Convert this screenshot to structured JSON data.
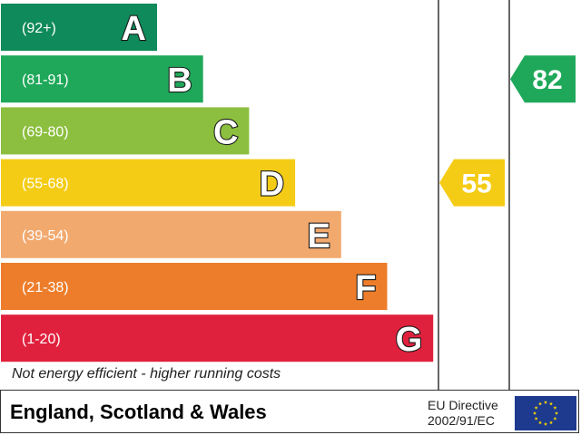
{
  "chart_data": {
    "type": "bar",
    "categories": [
      "A",
      "B",
      "C",
      "D",
      "E",
      "F",
      "G"
    ],
    "ranges": [
      "(92+)",
      "(81-91)",
      "(69-80)",
      "(55-68)",
      "(39-54)",
      "(21-38)",
      "(1-20)"
    ],
    "colors": [
      "#0f8a5a",
      "#1fa85a",
      "#8cbf3f",
      "#f4cc16",
      "#f2a96e",
      "#ed7d2b",
      "#e0213d"
    ],
    "band_order": [
      1,
      2,
      3,
      4,
      5,
      6,
      7
    ],
    "ratings": [
      {
        "value": 55,
        "color": "#f4cc16"
      },
      {
        "value": 82,
        "color": "#1fa85a"
      }
    ]
  },
  "footnote": "Not energy efficient - higher running costs",
  "footer": {
    "region": "England, Scotland & Wales",
    "directive_line1": "EU Directive",
    "directive_line2": "2002/91/EC",
    "flag_icon": "eu-flag-icon",
    "flag_color": "#1d3a8f",
    "star_color": "#f7d300"
  }
}
